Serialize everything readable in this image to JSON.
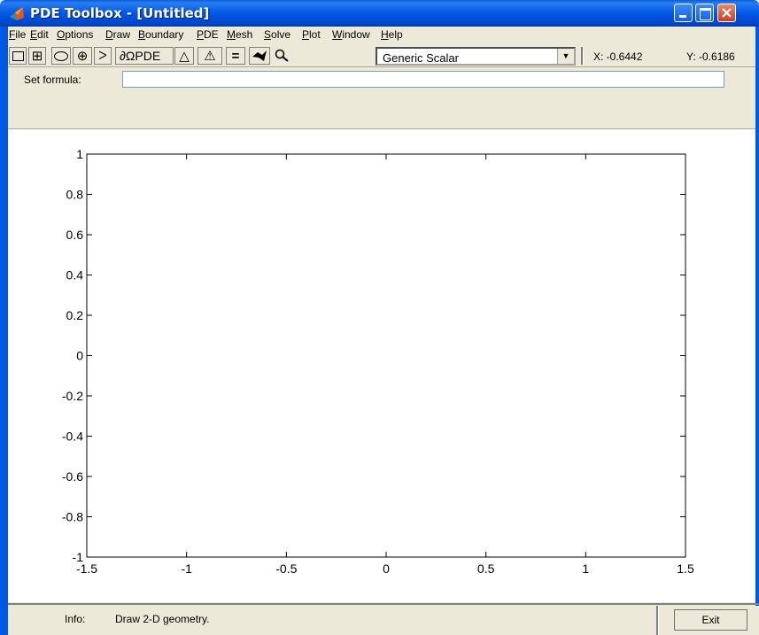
{
  "window": {
    "title": "PDE Toolbox - [Untitled]"
  },
  "menu": [
    "File",
    "Edit",
    "Options",
    "Draw",
    "Boundary",
    "PDE",
    "Mesh",
    "Solve",
    "Plot",
    "Window",
    "Help"
  ],
  "toolbar": {
    "pde_label": "∂ΩPDE",
    "equals_label": "=",
    "mode_select": "Generic Scalar",
    "x_coord": "X: -0.6442",
    "y_coord": "Y: -0.6186"
  },
  "formula": {
    "label": "Set formula:",
    "value": ""
  },
  "chart_data": {
    "type": "scatter",
    "xlim": [
      -1.5,
      1.5
    ],
    "ylim": [
      -1,
      1
    ],
    "x_ticks": [
      "-1.5",
      "-1",
      "-0.5",
      "0",
      "0.5",
      "1",
      "1.5"
    ],
    "y_ticks": [
      "-1",
      "-0.8",
      "-0.6",
      "-0.4",
      "-0.2",
      "0",
      "0.2",
      "0.4",
      "0.6",
      "0.8",
      "1"
    ],
    "series": [],
    "grid": false
  },
  "status": {
    "info_label": "Info:",
    "info_text": "Draw 2-D geometry.",
    "exit_label": "Exit"
  }
}
